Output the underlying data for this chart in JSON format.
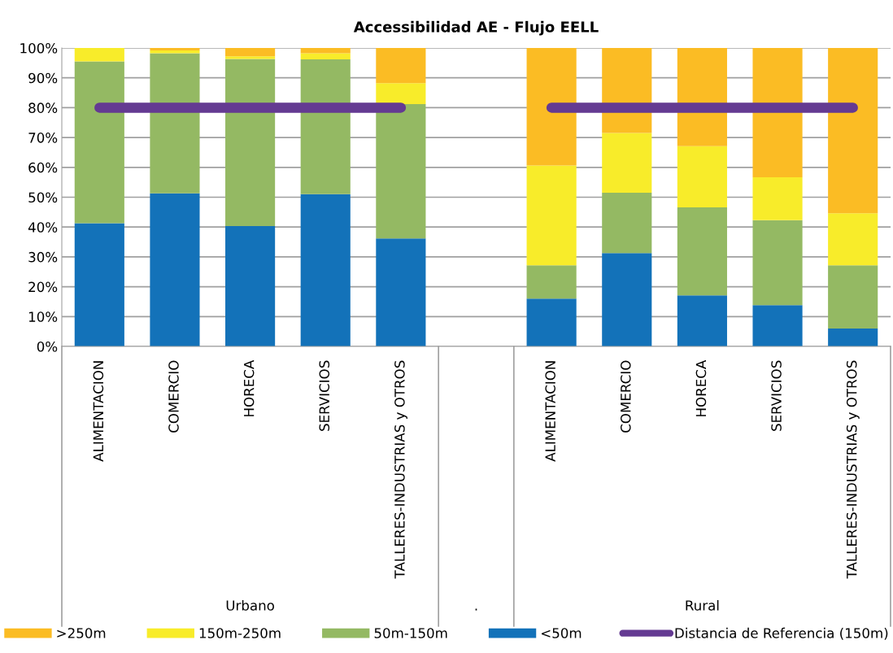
{
  "chart_data": {
    "type": "bar",
    "stacked": true,
    "title": "Accessibilidad AE - Flujo EELL",
    "categories": [
      "ALIMENTACION",
      "COMERCIO",
      "HORECA",
      "SERVICIOS",
      "TALLERES-INDUSTRIAS y OTROS",
      null,
      "ALIMENTACION",
      "COMERCIO",
      "HORECA",
      "SERVICIOS",
      "TALLERES-INDUSTRIAS y OTROS"
    ],
    "series": [
      {
        "name": "<50m",
        "color": "#1372b9",
        "values": [
          41.3,
          51.3,
          40.3,
          51.0,
          36.2,
          null,
          16.0,
          31.3,
          17.1,
          13.8,
          6.0
        ]
      },
      {
        "name": "50m-150m",
        "color": "#94b963",
        "values": [
          54.2,
          46.9,
          56.0,
          45.2,
          45.0,
          null,
          11.2,
          20.2,
          29.5,
          28.5,
          21.2
        ]
      },
      {
        "name": "150m-250m",
        "color": "#f8ec2a",
        "values": [
          4.5,
          1.0,
          0.9,
          2.0,
          7.0,
          null,
          33.4,
          20.0,
          20.5,
          14.4,
          17.4
        ]
      },
      {
        "name": ">250m",
        "color": "#fbbc24",
        "values": [
          0,
          0.8,
          2.8,
          1.8,
          11.8,
          null,
          39.4,
          28.5,
          32.9,
          43.3,
          55.4
        ]
      },
      {
        "name": "Distancia de Referencia (150m)",
        "type": "line",
        "color": "#643a92",
        "values": [
          80,
          80,
          80,
          80,
          80,
          null,
          80,
          80,
          80,
          80,
          80
        ]
      }
    ],
    "ylim": [
      0,
      100
    ],
    "yticks": [
      {
        "value": 0,
        "label": "0%"
      },
      {
        "value": 10,
        "label": "10%"
      },
      {
        "value": 20,
        "label": "20%"
      },
      {
        "value": 30,
        "label": "30%"
      },
      {
        "value": 40,
        "label": "40%"
      },
      {
        "value": 50,
        "label": "50%"
      },
      {
        "value": 60,
        "label": "60%"
      },
      {
        "value": 70,
        "label": "70%"
      },
      {
        "value": 80,
        "label": "80%"
      },
      {
        "value": 90,
        "label": "90%"
      },
      {
        "value": 100,
        "label": "100%"
      }
    ],
    "grid": "y",
    "legend": "bottom",
    "line_style": "solid",
    "annotations": [
      "Urbano",
      ".",
      "Rural"
    ]
  }
}
